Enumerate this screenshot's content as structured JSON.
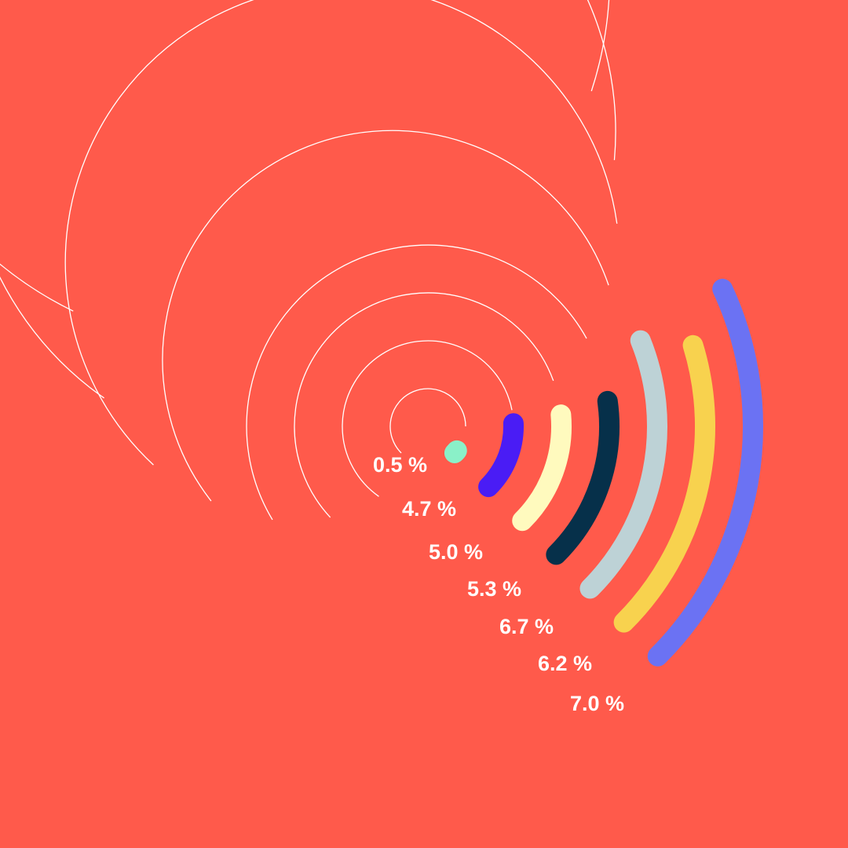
{
  "colors": {
    "background": "#FF5A4B",
    "guide_line": "#FFFFFF",
    "label": "#FFFFFF"
  },
  "chart_data": {
    "type": "radial-bar",
    "grid": false,
    "legend": "none",
    "series": [
      {
        "label": "0.5 %",
        "value": 0.5,
        "color": "#8AF0C8"
      },
      {
        "label": "4.7 %",
        "value": 4.7,
        "color": "#4A1CF5"
      },
      {
        "label": "5.0 %",
        "value": 5.0,
        "color": "#FFFABE"
      },
      {
        "label": "5.3 %",
        "value": 5.3,
        "color": "#06304A"
      },
      {
        "label": "6.7 %",
        "value": 6.7,
        "color": "#BDD2D6"
      },
      {
        "label": "6.2 %",
        "value": 6.2,
        "color": "#F8D24E"
      },
      {
        "label": "7.0  %",
        "value": 7.0,
        "color": "#6B72F3"
      }
    ]
  }
}
